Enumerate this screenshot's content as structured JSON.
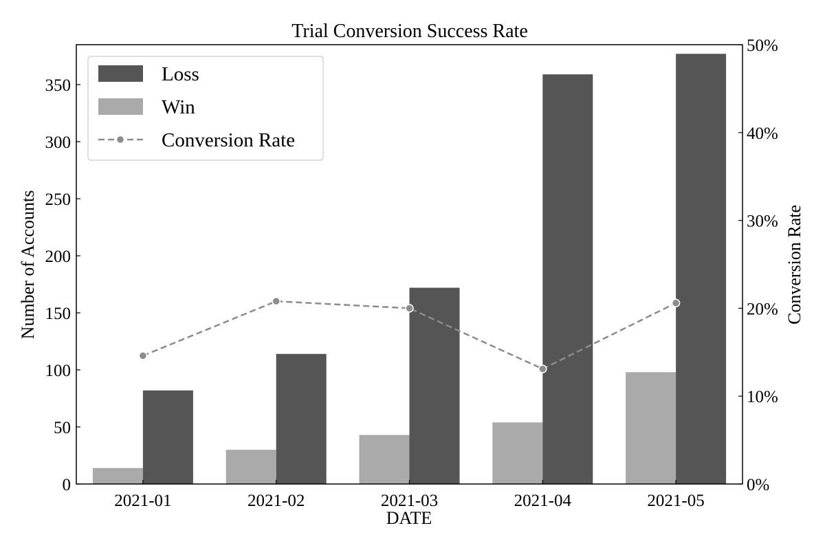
{
  "chart_data": {
    "type": "bar",
    "title": "Trial Conversion Success Rate",
    "xlabel": "DATE",
    "ylabel": "Number of Accounts",
    "y2label": "Conversion Rate",
    "categories": [
      "2021-01",
      "2021-02",
      "2021-03",
      "2021-04",
      "2021-05"
    ],
    "series": [
      {
        "name": "Loss",
        "kind": "bar",
        "axis": "left",
        "color": "#555555",
        "values": [
          82,
          114,
          172,
          359,
          377
        ]
      },
      {
        "name": "Win",
        "kind": "bar",
        "axis": "left",
        "color": "#aaaaaa",
        "values": [
          14,
          30,
          43,
          54,
          98
        ]
      },
      {
        "name": "Conversion Rate",
        "kind": "line",
        "axis": "right",
        "color": "#8c8c8c",
        "line_style": "dashed",
        "marker": "circle",
        "values": [
          14.6,
          20.8,
          20.0,
          13.1,
          20.6
        ]
      }
    ],
    "ylim": [
      0,
      385
    ],
    "yticks": [
      0,
      50,
      100,
      150,
      200,
      250,
      300,
      350
    ],
    "y2lim": [
      0,
      50
    ],
    "y2ticks": [
      0,
      10,
      20,
      30,
      40,
      50
    ],
    "y2tick_suffix": "%",
    "legend": {
      "placement": "upper-left",
      "order": [
        "Loss",
        "Win",
        "Conversion Rate"
      ]
    },
    "grid": false
  }
}
